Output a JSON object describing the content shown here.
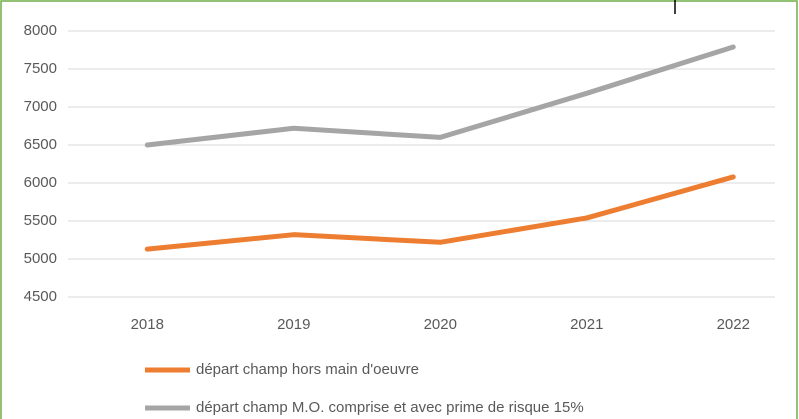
{
  "chart_data": {
    "type": "line",
    "categories": [
      "2018",
      "2019",
      "2020",
      "2021",
      "2022"
    ],
    "series": [
      {
        "name": "départ champ hors main d'oeuvre",
        "color": "#ed7d31",
        "values": [
          5130,
          5320,
          5220,
          5540,
          6080
        ]
      },
      {
        "name": "départ champ M.O. comprise et avec prime de risque 15%",
        "color": "#a5a5a5",
        "values": [
          6500,
          6720,
          6600,
          7180,
          7790
        ]
      }
    ],
    "ylim": [
      4500,
      8000
    ],
    "yticks": [
      4500,
      5000,
      5500,
      6000,
      6500,
      7000,
      7500,
      8000
    ],
    "grid": true,
    "legend": "bottom"
  }
}
